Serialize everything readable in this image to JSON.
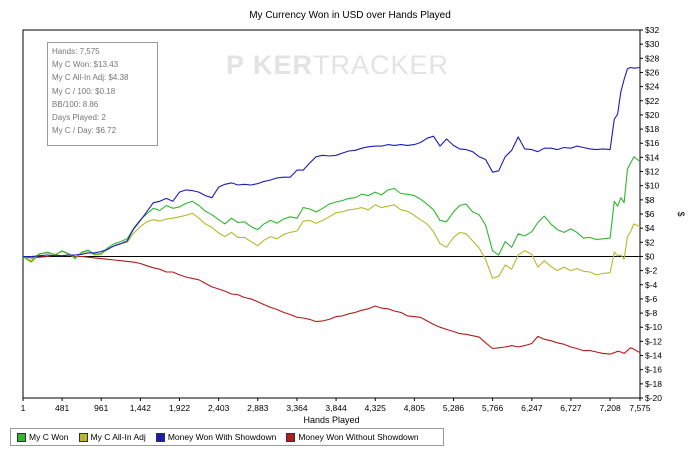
{
  "chart_title": "My Currency Won in USD over Hands Played",
  "watermark": {
    "part1": "P  KER",
    "part2": "TRACKER"
  },
  "stats": [
    "Hands: 7,575",
    "My C Won: $13.43",
    "My C All-In Adj: $4.38",
    "My C / 100: $0.18",
    "BB/100: 8.86",
    "Days Played: 2",
    "My C / Day: $6.72"
  ],
  "chart_data": {
    "type": "line",
    "title": "My Currency Won in USD over Hands Played",
    "xlabel": "Hands Played",
    "ylabel": "$",
    "xlim": [
      1,
      7575
    ],
    "ylim": [
      -20,
      32
    ],
    "x_ticks": [
      1,
      481,
      961,
      1442,
      1922,
      2403,
      2883,
      3364,
      3844,
      4325,
      4805,
      5286,
      5766,
      6247,
      6727,
      7208,
      7575
    ],
    "x_tick_labels": [
      "1",
      "481",
      "961",
      "1,442",
      "1,922",
      "2,403",
      "2,883",
      "3,364",
      "3,844",
      "4,325",
      "4,805",
      "5,286",
      "5,766",
      "6,247",
      "6,727",
      "7,208",
      "7,575"
    ],
    "y_ticks": [
      -20,
      -18,
      -16,
      -14,
      -12,
      -10,
      -8,
      -6,
      -4,
      -2,
      0,
      2,
      4,
      6,
      8,
      10,
      12,
      14,
      16,
      18,
      20,
      22,
      24,
      26,
      28,
      30,
      32
    ],
    "y_tick_labels": [
      "$-20",
      "$-18",
      "$-16",
      "$-14",
      "$-12",
      "$-10",
      "$-8",
      "$-6",
      "$-4",
      "$-2",
      "$0",
      "$2",
      "$4",
      "$6",
      "$8",
      "$10",
      "$12",
      "$14",
      "$16",
      "$18",
      "$20",
      "$22",
      "$24",
      "$26",
      "$28",
      "$30",
      "$32"
    ],
    "legend_position": "bottom-left",
    "series": [
      {
        "name": "My C Won",
        "color": "#2db82d",
        "x": [
          1,
          100,
          200,
          300,
          400,
          480,
          560,
          640,
          720,
          800,
          880,
          960,
          1040,
          1120,
          1200,
          1280,
          1360,
          1442,
          1520,
          1600,
          1680,
          1760,
          1840,
          1922,
          2000,
          2080,
          2160,
          2240,
          2320,
          2403,
          2480,
          2560,
          2640,
          2720,
          2800,
          2883,
          2960,
          3040,
          3120,
          3200,
          3280,
          3364,
          3440,
          3520,
          3600,
          3680,
          3760,
          3844,
          3920,
          4000,
          4080,
          4160,
          4240,
          4325,
          4400,
          4480,
          4560,
          4640,
          4720,
          4805,
          4880,
          4960,
          5040,
          5120,
          5200,
          5286,
          5360,
          5440,
          5520,
          5600,
          5680,
          5766,
          5840,
          5920,
          6000,
          6080,
          6160,
          6247,
          6320,
          6400,
          6480,
          6560,
          6640,
          6727,
          6800,
          6880,
          6960,
          7040,
          7120,
          7208,
          7260,
          7300,
          7340,
          7380,
          7420,
          7460,
          7500,
          7575
        ],
        "y": [
          0,
          -0.8,
          0.3,
          0.6,
          0.2,
          0.8,
          0.4,
          -0.3,
          0.6,
          0.9,
          0.3,
          0.4,
          1.2,
          1.8,
          2.1,
          2.5,
          4,
          5.2,
          6,
          6.8,
          6.5,
          7.2,
          6.8,
          7,
          7.5,
          7.8,
          7.2,
          6.4,
          5.9,
          5.2,
          4.6,
          5.4,
          4.8,
          4.9,
          4.2,
          3.8,
          4.6,
          5.1,
          4.7,
          5.3,
          5.6,
          5.4,
          6.9,
          6.7,
          6.3,
          6.8,
          7.4,
          7.7,
          7.9,
          8.2,
          8.3,
          8.8,
          8.6,
          9.1,
          8.7,
          9.4,
          9.6,
          8.9,
          8.8,
          8.6,
          8.1,
          7.4,
          6.6,
          5.1,
          4.9,
          6.3,
          7.2,
          7.4,
          6.3,
          5.9,
          4.4,
          0.8,
          0.2,
          2.1,
          1.3,
          3.2,
          2.9,
          3.5,
          4.8,
          5.7,
          4.6,
          3.8,
          3.4,
          3.9,
          3.4,
          2.6,
          2.7,
          2.4,
          2.5,
          2.6,
          7.8,
          7.1,
          8.3,
          7.6,
          12.3,
          13.2,
          14.1,
          13.4
        ]
      },
      {
        "name": "My C All-In Adj",
        "color": "#b8b82d",
        "x": [
          1,
          100,
          200,
          300,
          400,
          480,
          560,
          640,
          720,
          800,
          880,
          960,
          1040,
          1120,
          1200,
          1280,
          1360,
          1442,
          1520,
          1600,
          1680,
          1760,
          1840,
          1922,
          2000,
          2080,
          2160,
          2240,
          2320,
          2403,
          2480,
          2560,
          2640,
          2720,
          2800,
          2883,
          2960,
          3040,
          3120,
          3200,
          3280,
          3364,
          3440,
          3520,
          3600,
          3680,
          3760,
          3844,
          3920,
          4000,
          4080,
          4160,
          4240,
          4325,
          4400,
          4480,
          4560,
          4640,
          4720,
          4805,
          4880,
          4960,
          5040,
          5120,
          5200,
          5286,
          5360,
          5440,
          5520,
          5600,
          5680,
          5766,
          5840,
          5920,
          6000,
          6080,
          6160,
          6247,
          6320,
          6400,
          6480,
          6560,
          6640,
          6727,
          6800,
          6880,
          6960,
          7040,
          7120,
          7208,
          7260,
          7300,
          7340,
          7380,
          7420,
          7460,
          7500,
          7575
        ],
        "y": [
          0,
          -0.6,
          0.4,
          0.5,
          0.3,
          0.7,
          0.3,
          -0.2,
          0.5,
          0.8,
          0.2,
          0.3,
          1,
          1.5,
          1.8,
          2,
          3.3,
          4.2,
          4.9,
          5.2,
          5,
          5.3,
          5.4,
          5.6,
          5.8,
          6.1,
          5.4,
          4.6,
          4.1,
          3.3,
          2.8,
          3.4,
          2.7,
          2.7,
          2.1,
          1.5,
          2.3,
          2.8,
          2.5,
          3.1,
          3.4,
          3.6,
          5,
          5.1,
          4.7,
          5.1,
          5.6,
          6.2,
          6.3,
          6.6,
          6.7,
          6.9,
          6.6,
          7.3,
          6.9,
          7.1,
          7.3,
          6.6,
          6.4,
          5.8,
          5.2,
          4.6,
          3.5,
          1.8,
          1.3,
          2.7,
          3.4,
          3.2,
          2.2,
          1.2,
          -0.4,
          -3.1,
          -2.8,
          -1.2,
          -1.8,
          0.2,
          0.8,
          0.3,
          -1.5,
          -0.6,
          -1.4,
          -2,
          -1.5,
          -2,
          -1.7,
          -2.1,
          -2.2,
          -2.6,
          -2.4,
          -2.3,
          0.6,
          0.1,
          0.2,
          -0.4,
          2.8,
          3.5,
          4.6,
          4.2
        ]
      },
      {
        "name": "Money Won With Showdown",
        "color": "#1c1cb4",
        "x": [
          1,
          100,
          200,
          300,
          400,
          480,
          560,
          640,
          720,
          800,
          880,
          960,
          1040,
          1120,
          1200,
          1280,
          1360,
          1442,
          1520,
          1600,
          1680,
          1760,
          1840,
          1922,
          2000,
          2080,
          2160,
          2240,
          2320,
          2403,
          2480,
          2560,
          2640,
          2720,
          2800,
          2883,
          2960,
          3040,
          3120,
          3200,
          3280,
          3364,
          3440,
          3520,
          3600,
          3680,
          3760,
          3844,
          3920,
          4000,
          4080,
          4160,
          4240,
          4325,
          4400,
          4480,
          4560,
          4640,
          4720,
          4805,
          4880,
          4960,
          5040,
          5120,
          5200,
          5286,
          5360,
          5440,
          5520,
          5600,
          5680,
          5766,
          5840,
          5920,
          6000,
          6080,
          6160,
          6247,
          6320,
          6400,
          6480,
          6560,
          6640,
          6727,
          6800,
          6880,
          6960,
          7040,
          7120,
          7208,
          7260,
          7300,
          7340,
          7380,
          7420,
          7460,
          7500,
          7575
        ],
        "y": [
          0,
          0,
          0.1,
          0.2,
          0.1,
          0.1,
          0.2,
          0.2,
          0.3,
          0.5,
          0.5,
          0.7,
          1,
          1.5,
          1.8,
          2.2,
          3.9,
          5.1,
          6.3,
          7.6,
          7.8,
          8.2,
          7.8,
          9.1,
          9.4,
          9.3,
          9.1,
          8.6,
          8.3,
          9.8,
          10.2,
          10.4,
          10.1,
          10.2,
          10.1,
          10.3,
          10.6,
          10.8,
          11.1,
          11.2,
          11.2,
          12.2,
          12.2,
          13.2,
          14.1,
          14.3,
          14.2,
          14.3,
          14.6,
          14.9,
          15,
          15.3,
          15.5,
          15.6,
          15.6,
          15.8,
          15.7,
          15.8,
          15.7,
          15.8,
          16.1,
          16.7,
          17,
          15.6,
          16.6,
          15.7,
          15.2,
          15.1,
          14.8,
          14.1,
          13.7,
          11.9,
          12.1,
          14.1,
          15,
          16.9,
          15.2,
          15.1,
          14.8,
          15.3,
          15.3,
          15.1,
          15.4,
          15.3,
          15.6,
          15.4,
          15.2,
          15.1,
          15.2,
          15.1,
          19.4,
          20.1,
          23.3,
          25,
          26.5,
          26.7,
          26.6,
          26.7
        ]
      },
      {
        "name": "Money Won Without Showdown",
        "color": "#b41c1c",
        "x": [
          1,
          100,
          200,
          300,
          400,
          480,
          560,
          640,
          720,
          800,
          880,
          960,
          1040,
          1120,
          1200,
          1280,
          1360,
          1442,
          1520,
          1600,
          1680,
          1760,
          1840,
          1922,
          2000,
          2080,
          2160,
          2240,
          2320,
          2403,
          2480,
          2560,
          2640,
          2720,
          2800,
          2883,
          2960,
          3040,
          3120,
          3200,
          3280,
          3364,
          3440,
          3520,
          3600,
          3680,
          3760,
          3844,
          3920,
          4000,
          4080,
          4160,
          4240,
          4325,
          4400,
          4480,
          4560,
          4640,
          4720,
          4805,
          4880,
          4960,
          5040,
          5120,
          5200,
          5286,
          5360,
          5440,
          5520,
          5600,
          5680,
          5766,
          5840,
          5920,
          6000,
          6080,
          6160,
          6247,
          6320,
          6400,
          6480,
          6560,
          6640,
          6727,
          6800,
          6880,
          6960,
          7040,
          7120,
          7208,
          7260,
          7300,
          7340,
          7380,
          7420,
          7460,
          7500,
          7575
        ],
        "y": [
          0,
          -0.2,
          -0.1,
          0,
          0.2,
          0.1,
          0.2,
          0,
          0,
          -0.1,
          -0.2,
          -0.3,
          -0.4,
          -0.5,
          -0.6,
          -0.7,
          -0.8,
          -1,
          -1.3,
          -1.6,
          -1.8,
          -2.2,
          -2.2,
          -2.6,
          -2.9,
          -3.1,
          -3.3,
          -3.8,
          -4.3,
          -4.6,
          -4.9,
          -5.3,
          -5.4,
          -5.8,
          -6,
          -6.4,
          -6.8,
          -7.2,
          -7.5,
          -7.9,
          -8.2,
          -8.6,
          -8.7,
          -8.9,
          -9.2,
          -9.1,
          -8.9,
          -8.5,
          -8.4,
          -8.1,
          -7.9,
          -7.6,
          -7.4,
          -7,
          -7.3,
          -7.4,
          -7.7,
          -7.9,
          -8.4,
          -8.5,
          -8.6,
          -9.1,
          -9.6,
          -10,
          -10.3,
          -10.6,
          -10.9,
          -11,
          -11.2,
          -11.4,
          -12.2,
          -13,
          -12.9,
          -12.8,
          -12.6,
          -12.8,
          -12.6,
          -12.3,
          -11.3,
          -11.7,
          -11.9,
          -12.2,
          -12.4,
          -12.8,
          -13,
          -13.3,
          -13.3,
          -13.5,
          -13.7,
          -13.8,
          -13.6,
          -13.4,
          -13.5,
          -13.7,
          -13.3,
          -12.9,
          -13.1,
          -13.6
        ]
      }
    ]
  }
}
